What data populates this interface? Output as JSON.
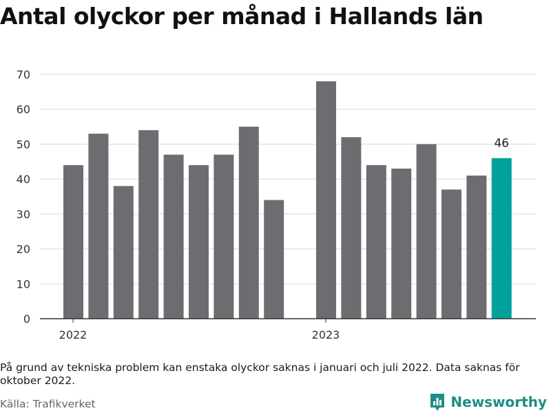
{
  "header": {
    "title": "Antal olyckor per månad i Hallands län"
  },
  "chart_data": {
    "type": "bar",
    "title": "Antal olyckor per månad i Hallands län",
    "xlabel": "",
    "ylabel": "",
    "ylim": [
      0,
      70
    ],
    "yticks": [
      0,
      10,
      20,
      30,
      40,
      50,
      60,
      70
    ],
    "grid": true,
    "groups": [
      {
        "label": "2022",
        "values": [
          44,
          53,
          38,
          54,
          47,
          44,
          47,
          55,
          34
        ]
      },
      {
        "label": "2023",
        "values": [
          68,
          52,
          44,
          43,
          50,
          37,
          41,
          46
        ]
      }
    ],
    "highlight": {
      "value_label": "46"
    },
    "colors": {
      "bar": "#6d6c71",
      "highlight": "#00a19a",
      "grid": "#d9d9d9",
      "axis": "#333333"
    }
  },
  "footer": {
    "note": "På grund av tekniska problem kan enstaka olyckor saknas i januari och juli 2022. Data saknas för oktober 2022.",
    "source": "Källa: Trafikverket",
    "brand": "Newsworthy",
    "brand_icon": "bar-chart-icon"
  }
}
